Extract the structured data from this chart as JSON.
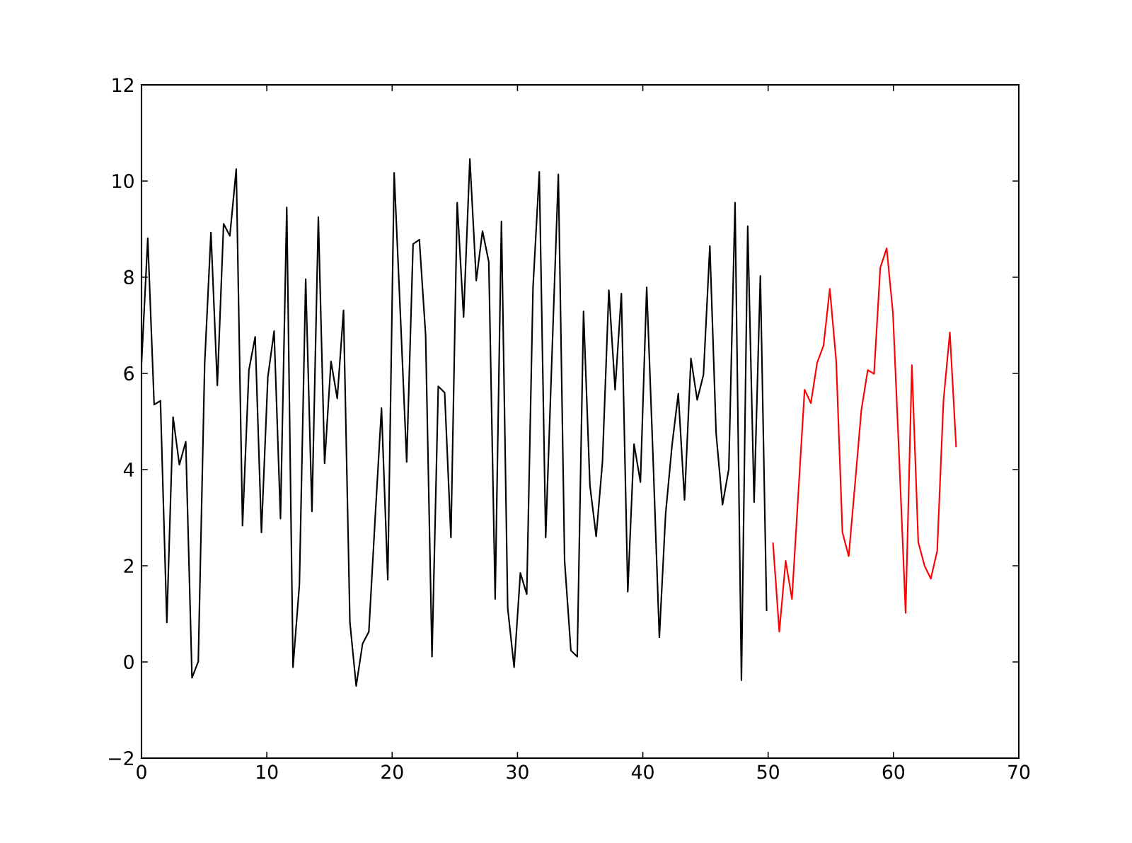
{
  "chart_data": {
    "type": "line",
    "marker": "none",
    "line_style": "solid",
    "xlim": [
      0,
      70
    ],
    "xticks": [
      0,
      10,
      20,
      30,
      40,
      50,
      60,
      70
    ],
    "ylim": [
      -2,
      12
    ],
    "yticks": [
      {
        "value": -2,
        "label": "−2"
      },
      0,
      2,
      4,
      6,
      8,
      10,
      12
    ],
    "series": [
      {
        "color": "#000000",
        "x": [
          0,
          0.5,
          1.01,
          1.51,
          2.02,
          2.52,
          3.02,
          3.53,
          4.03,
          4.53,
          5.04,
          5.54,
          6.05,
          6.55,
          7.05,
          7.56,
          8.06,
          8.57,
          9.07,
          9.57,
          10.08,
          10.58,
          11.09,
          11.59,
          12.09,
          12.6,
          13.1,
          13.6,
          14.11,
          14.61,
          15.12,
          15.62,
          16.12,
          16.63,
          17.13,
          17.64,
          18.14,
          18.64,
          19.15,
          19.65,
          20.16,
          20.66,
          21.16,
          21.67,
          22.17,
          22.67,
          23.18,
          23.68,
          24.19,
          24.69,
          25.19,
          25.7,
          26.2,
          26.71,
          27.21,
          27.71,
          28.22,
          28.72,
          29.22,
          29.73,
          30.23,
          30.74,
          31.24,
          31.74,
          32.25,
          32.75,
          33.26,
          33.76,
          34.26,
          34.77,
          35.27,
          35.78,
          36.28,
          36.78,
          37.29,
          37.79,
          38.29,
          38.8,
          39.3,
          39.81,
          40.31,
          40.81,
          41.32,
          41.82,
          42.33,
          42.83,
          43.33,
          43.84,
          44.34,
          44.84,
          45.35,
          45.85,
          46.36,
          46.86,
          47.36,
          47.87,
          48.37,
          48.88,
          49.38,
          49.88
        ],
        "values": [
          6.2,
          8.81,
          5.35,
          5.43,
          0.82,
          5.09,
          4.1,
          4.58,
          -0.33,
          0.01,
          6.2,
          8.93,
          5.75,
          9.11,
          8.86,
          10.25,
          2.83,
          6.07,
          6.76,
          2.69,
          5.92,
          6.88,
          2.98,
          9.45,
          -0.11,
          1.61,
          7.96,
          3.13,
          9.25,
          4.13,
          6.25,
          5.48,
          7.31,
          0.82,
          -0.5,
          0.38,
          0.63,
          2.98,
          5.28,
          1.71,
          10.17,
          7.2,
          4.16,
          8.69,
          8.78,
          6.8,
          0.11,
          5.73,
          5.6,
          2.59,
          9.55,
          7.17,
          10.46,
          7.93,
          8.96,
          8.32,
          1.31,
          9.16,
          1.12,
          -0.11,
          1.85,
          1.41,
          7.79,
          10.19,
          2.59,
          6.36,
          10.14,
          2.1,
          0.24,
          0.11,
          7.29,
          3.67,
          2.61,
          4.16,
          7.73,
          5.66,
          7.66,
          1.46,
          4.53,
          3.74,
          7.79,
          4.3,
          0.51,
          3.08,
          4.5,
          5.58,
          3.37,
          6.31,
          5.45,
          5.97,
          8.65,
          4.75,
          3.27,
          4.01,
          9.55,
          -0.38,
          9.06,
          3.32,
          8.03,
          1.07
        ]
      },
      {
        "color": "#ff0000",
        "x": [
          50.39,
          50.89,
          51.4,
          51.9,
          52.4,
          52.91,
          53.41,
          53.91,
          54.42,
          54.92,
          55.43,
          55.93,
          56.43,
          56.94,
          57.44,
          57.95,
          58.45,
          58.95,
          59.46,
          59.96,
          60.47,
          60.97,
          61.47,
          61.98,
          62.48,
          62.98,
          63.49,
          63.99,
          64.5,
          65.0
        ],
        "values": [
          2.47,
          0.63,
          2.1,
          1.31,
          3.47,
          5.66,
          5.38,
          6.22,
          6.58,
          7.76,
          6.26,
          2.69,
          2.2,
          3.72,
          5.24,
          6.07,
          5.99,
          8.2,
          8.6,
          7.25,
          4.16,
          1.02,
          6.17,
          2.49,
          2.0,
          1.73,
          2.31,
          5.43,
          6.85,
          4.48
        ]
      }
    ]
  }
}
